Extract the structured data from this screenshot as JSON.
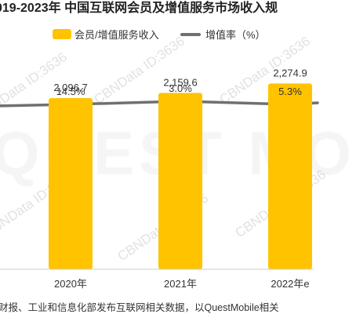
{
  "title": "019-2023年 中国互联网会员及增值服务市场收入规",
  "legend": {
    "bar_label": "会员/增值服务收入",
    "line_label": "增值率（%）"
  },
  "watermark": {
    "text": "CBNData ID:3636",
    "big_text": "QUEST MO"
  },
  "footnote": "财报、工业和信息化部发布互联网相关数据，以QuestMobile相关",
  "colors": {
    "bar": "#ffc300",
    "line": "#707070",
    "label": "#333333",
    "axis": "#cccccc"
  },
  "chart_data": {
    "type": "bar",
    "categories": [
      "2020年",
      "2021年",
      "2022年e"
    ],
    "values": [
      2096.7,
      2159.6,
      2274.9
    ],
    "value_labels": [
      "2,096.7",
      "2,159.6",
      "2,274.9"
    ],
    "series": [
      {
        "name": "会员/增值服务收入",
        "type": "bar",
        "values": [
          2096.7,
          2159.6,
          2274.9
        ]
      },
      {
        "name": "增值率（%）",
        "type": "line",
        "values": [
          14.5,
          3.0,
          5.3
        ],
        "labels": [
          "14.5%",
          "3.0%",
          "5.3%"
        ]
      }
    ],
    "ylim": [
      0,
      3000
    ]
  }
}
